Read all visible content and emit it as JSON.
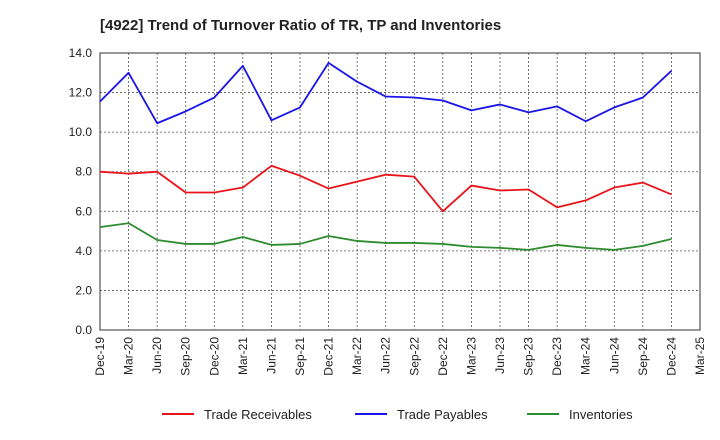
{
  "chart_data": {
    "type": "line",
    "title": "[4922]  Trend of Turnover Ratio of TR, TP and Inventories",
    "xlabel": "",
    "ylabel": "",
    "ylim": [
      0,
      14
    ],
    "yticks": [
      "0.0",
      "2.0",
      "4.0",
      "6.0",
      "8.0",
      "10.0",
      "12.0",
      "14.0"
    ],
    "grid": true,
    "legend_position": "bottom",
    "x": [
      "Dec-19",
      "Mar-20",
      "Jun-20",
      "Sep-20",
      "Dec-20",
      "Mar-21",
      "Jun-21",
      "Sep-21",
      "Dec-21",
      "Mar-22",
      "Jun-22",
      "Sep-22",
      "Dec-22",
      "Mar-23",
      "Jun-23",
      "Sep-23",
      "Dec-23",
      "Mar-24",
      "Jun-24",
      "Sep-24",
      "Dec-24",
      "Mar-25"
    ],
    "series": [
      {
        "name": "Trade Receivables",
        "color": "#e8141a",
        "values": [
          8.0,
          7.9,
          8.0,
          6.95,
          6.95,
          7.2,
          8.3,
          7.8,
          7.15,
          7.5,
          7.85,
          7.75,
          6.0,
          7.3,
          7.05,
          7.1,
          6.2,
          6.55,
          7.2,
          7.45,
          6.85,
          null
        ]
      },
      {
        "name": "Trade Payables",
        "color": "#1a14e8",
        "values": [
          11.55,
          13.0,
          10.45,
          11.05,
          11.75,
          13.35,
          10.6,
          11.25,
          13.5,
          12.55,
          11.8,
          11.75,
          11.6,
          11.1,
          11.4,
          11.0,
          11.3,
          10.55,
          11.25,
          11.75,
          13.1,
          null
        ]
      },
      {
        "name": "Inventories",
        "color": "#2e8b2e",
        "values": [
          5.2,
          5.4,
          4.55,
          4.35,
          4.35,
          4.7,
          4.3,
          4.35,
          4.75,
          4.5,
          4.4,
          4.4,
          4.35,
          4.2,
          4.15,
          4.05,
          4.3,
          4.15,
          4.05,
          4.25,
          4.6,
          null
        ]
      }
    ]
  }
}
